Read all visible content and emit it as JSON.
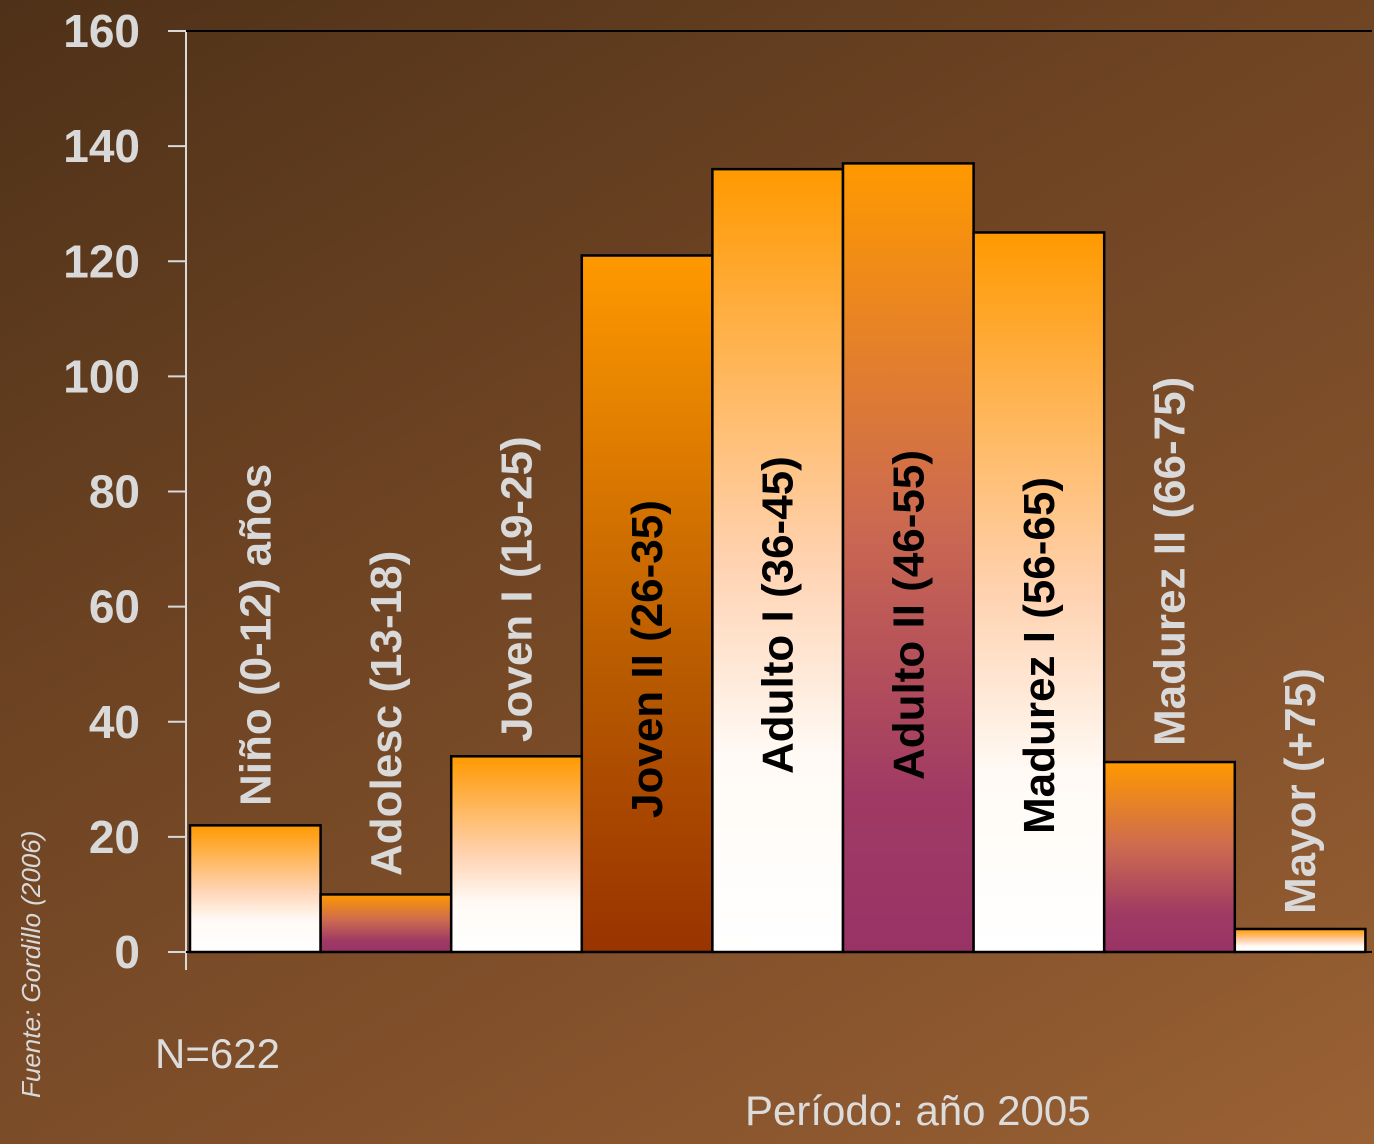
{
  "chart_data": {
    "type": "bar",
    "categories": [
      "Niño (0-12) años",
      "Adolesc (13-18)",
      "Joven I (19-25)",
      "Joven II (26-35)",
      "Adulto I (36-45)",
      "Adulto II (46-55)",
      "Madurez I (56-65)",
      "Madurez II (66-75)",
      "Mayor (+75)"
    ],
    "values": [
      22,
      10,
      34,
      121,
      136,
      137,
      125,
      33,
      4
    ],
    "ylim": [
      0,
      160
    ],
    "yticks": [
      "0",
      "20",
      "40",
      "60",
      "80",
      "100",
      "120",
      "140",
      "160"
    ],
    "title": "",
    "xlabel": "",
    "ylabel": "",
    "grid": false,
    "bar_styles": [
      {
        "fill": "orange-white",
        "label_color": "#d9d9d9"
      },
      {
        "fill": "orange-purple",
        "label_color": "#d9d9d9"
      },
      {
        "fill": "orange-white",
        "label_color": "#d9d9d9"
      },
      {
        "fill": "orange-brown",
        "label_color": "#000000"
      },
      {
        "fill": "orange-white",
        "label_color": "#000000"
      },
      {
        "fill": "orange-purple",
        "label_color": "#000000"
      },
      {
        "fill": "orange-white",
        "label_color": "#000000"
      },
      {
        "fill": "orange-purple",
        "label_color": "#d9d9d9"
      },
      {
        "fill": "orange-white",
        "label_color": "#d9d9d9"
      }
    ]
  },
  "notes": {
    "sample_size": "N=622",
    "period": "Período: año 2005",
    "source": "Fuente: Gordillo (2006)"
  }
}
